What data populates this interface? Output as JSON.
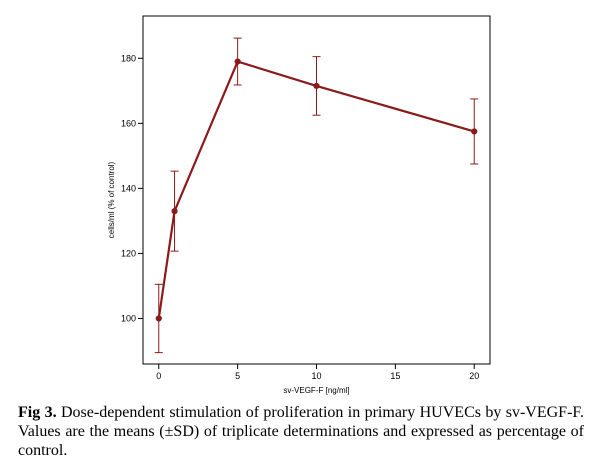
{
  "chart_data": {
    "type": "line",
    "title": "",
    "xlabel": "sv-VEGF-F [ng/ml]",
    "ylabel": "cells/ml (% of control)",
    "xlim": [
      -1,
      21
    ],
    "ylim": [
      86,
      193
    ],
    "x_ticks": [
      0,
      5,
      10,
      15,
      20
    ],
    "y_ticks": [
      100,
      120,
      140,
      160,
      180
    ],
    "grid": false,
    "series": [
      {
        "name": "cells/ml",
        "color": "#8b1a1a",
        "points": [
          {
            "x": 0,
            "y": 100,
            "err": 10.5
          },
          {
            "x": 1,
            "y": 133,
            "err": 12.3
          },
          {
            "x": 5,
            "y": 179,
            "err": 7.2
          },
          {
            "x": 10,
            "y": 171.5,
            "err": 9.0
          },
          {
            "x": 20,
            "y": 157.5,
            "err": 10.0
          }
        ]
      }
    ]
  },
  "caption": {
    "label": "Fig 3.",
    "text": " Dose-dependent stimulation of proliferation in primary HUVECs by sv-VEGF-F. Values are the means (±SD) of triplicate determinations and expressed as percentage of control."
  }
}
